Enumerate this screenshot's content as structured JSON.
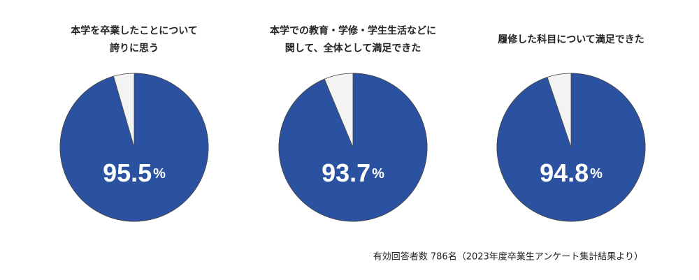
{
  "chart_data": [
    {
      "type": "pie",
      "title": [
        "本学を卒業したことについて",
        "誇りに思う"
      ],
      "values": [
        95.5
      ],
      "unit": "%",
      "color": "#2b52a0",
      "rest_color": "#f3f3f3"
    },
    {
      "type": "pie",
      "title": [
        "本学での教育・学修・学生生活などに",
        "関して、全体として満足できた"
      ],
      "values": [
        93.7
      ],
      "unit": "%",
      "color": "#2b52a0",
      "rest_color": "#f3f3f3"
    },
    {
      "type": "pie",
      "title": [
        "履修した科目について満足できた"
      ],
      "values": [
        94.8
      ],
      "unit": "%",
      "color": "#2b52a0",
      "rest_color": "#f3f3f3"
    }
  ],
  "footnote": "有効回答者数 786名（2023年度卒業生アンケート集計結果より）"
}
